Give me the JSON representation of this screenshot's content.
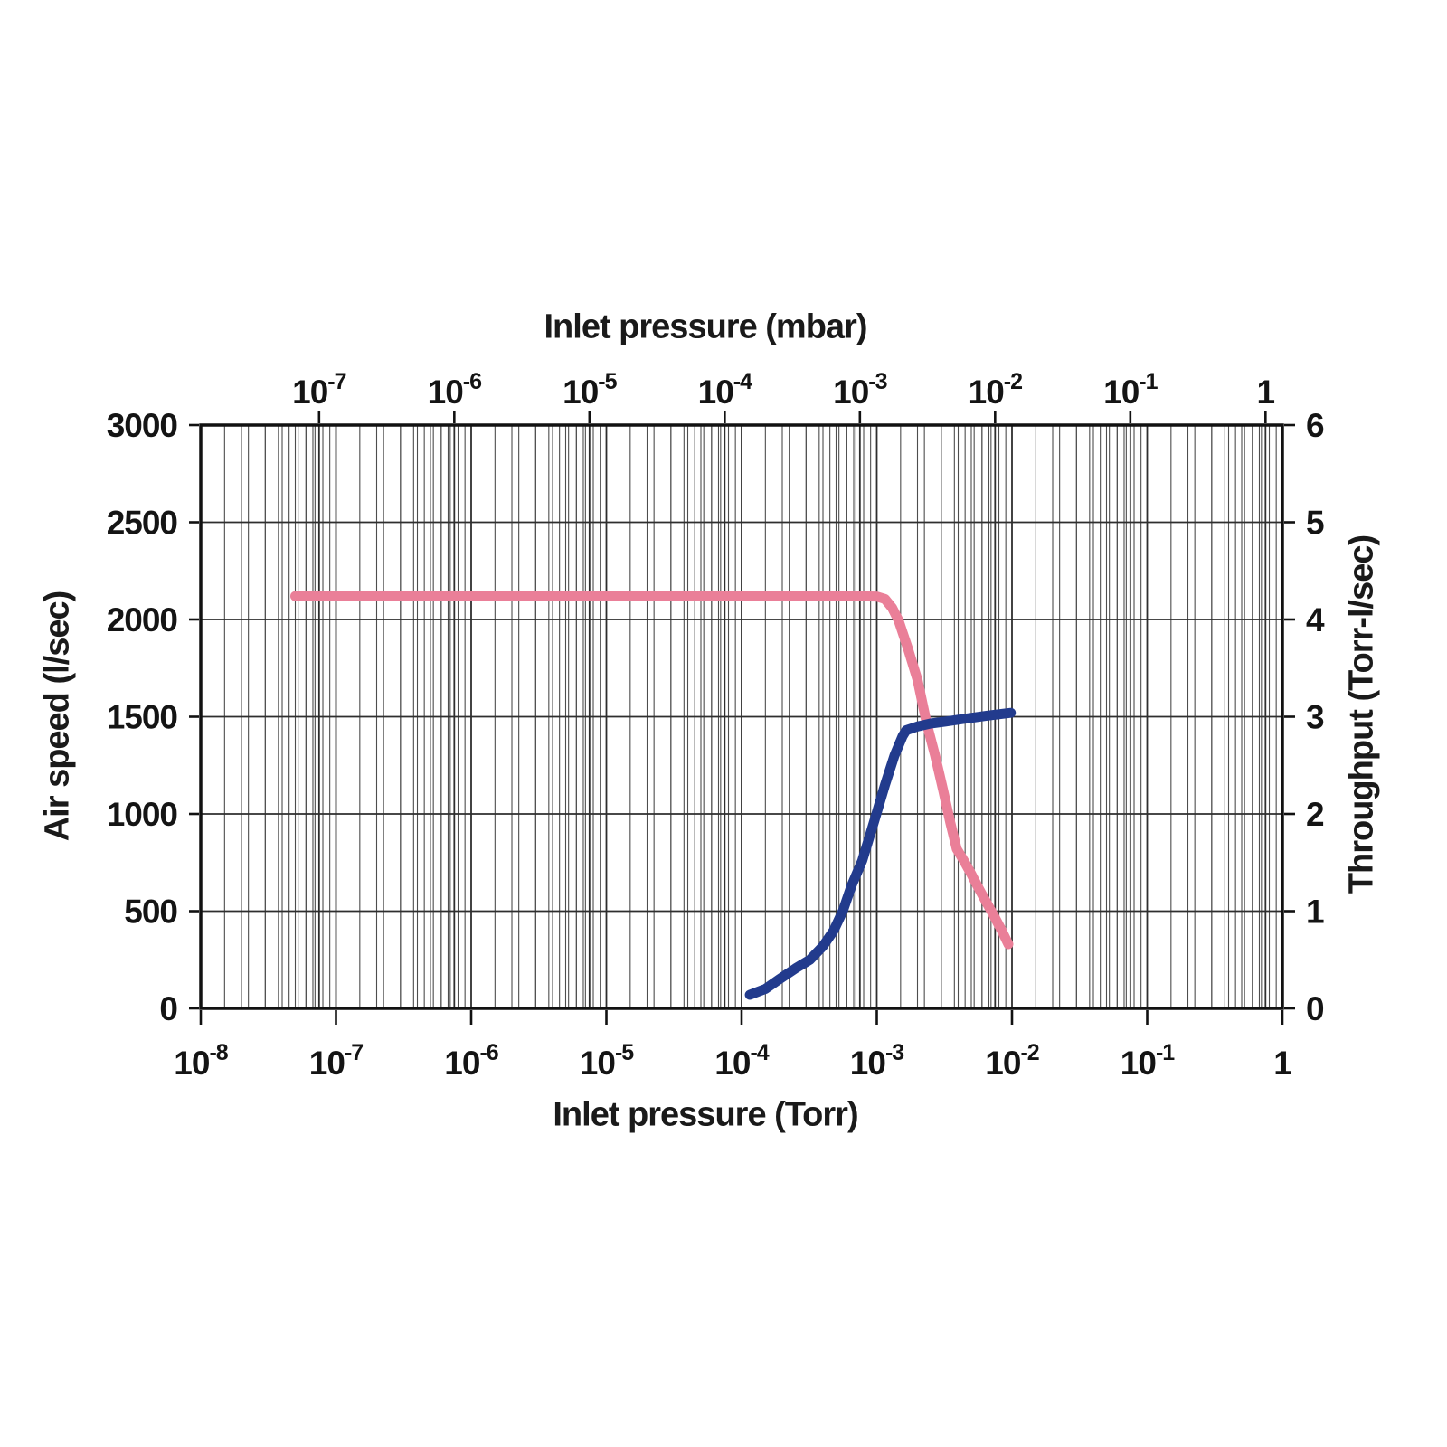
{
  "chart_data": {
    "type": "line",
    "title": "",
    "x_axis_bottom": {
      "label": "Inlet pressure (Torr)",
      "scale": "log",
      "min": 1e-08,
      "max": 1,
      "tick_exponents": [
        -8,
        -7,
        -6,
        -5,
        -4,
        -3,
        -2,
        -1,
        0
      ]
    },
    "x_axis_top": {
      "label": "Inlet pressure (mbar)",
      "scale": "log",
      "factor_from_torr": 1.3332,
      "tick_exponents": [
        -7,
        -6,
        -5,
        -4,
        -3,
        -2,
        -1,
        0
      ]
    },
    "y_axis_left": {
      "label": "Air speed (l/sec)",
      "min": 0,
      "max": 3000,
      "ticks": [
        0,
        500,
        1000,
        1500,
        2000,
        2500,
        3000
      ]
    },
    "y_axis_right": {
      "label": "Throughput (Torr-l/sec)",
      "min": 0,
      "max": 6,
      "ticks": [
        0,
        1,
        2,
        3,
        4,
        5,
        6
      ]
    },
    "grid": {
      "vertical": "log minor gridlines for both Torr and mbar scales",
      "horizontal": "major gridlines every 500 l/sec (every 1 Torr-l/sec)",
      "legend": "none"
    },
    "series": [
      {
        "name": "Air speed",
        "axis": "left",
        "color": "#ea7f98",
        "points": [
          [
            5e-08,
            2120
          ],
          [
            1e-05,
            2120
          ],
          [
            0.0006,
            2120
          ],
          [
            0.001,
            2118
          ],
          [
            0.00115,
            2105
          ],
          [
            0.0013,
            2060
          ],
          [
            0.00145,
            1995
          ],
          [
            0.0017,
            1850
          ],
          [
            0.002,
            1690
          ],
          [
            0.00235,
            1460
          ],
          [
            0.0027,
            1300
          ],
          [
            0.0031,
            1120
          ],
          [
            0.0035,
            955
          ],
          [
            0.0039,
            820
          ],
          [
            0.0044,
            760
          ],
          [
            0.005,
            690
          ],
          [
            0.0058,
            605
          ],
          [
            0.0066,
            535
          ],
          [
            0.0075,
            465
          ],
          [
            0.0084,
            400
          ],
          [
            0.0094,
            330
          ]
        ]
      },
      {
        "name": "Throughput",
        "axis": "right",
        "color": "#223b8d",
        "points": [
          [
            0.000115,
            0.14
          ],
          [
            0.00015,
            0.2
          ],
          [
            0.00019,
            0.3
          ],
          [
            0.00025,
            0.41
          ],
          [
            0.00032,
            0.5
          ],
          [
            0.0004,
            0.64
          ],
          [
            0.00048,
            0.8
          ],
          [
            0.00056,
            1.0
          ],
          [
            0.00065,
            1.26
          ],
          [
            0.00078,
            1.52
          ],
          [
            0.00096,
            1.93
          ],
          [
            0.00115,
            2.3
          ],
          [
            0.00135,
            2.6
          ],
          [
            0.00155,
            2.8
          ],
          [
            0.00165,
            2.86
          ],
          [
            0.002,
            2.9
          ],
          [
            0.0025,
            2.93
          ],
          [
            0.0032,
            2.95
          ],
          [
            0.0045,
            2.98
          ],
          [
            0.0065,
            3.01
          ],
          [
            0.0098,
            3.04
          ]
        ]
      }
    ],
    "colors": {
      "air_speed_line": "#ea7f98",
      "throughput_line": "#223b8d",
      "grid_minor": "#4d4d4d",
      "grid_major": "#2e2e2e",
      "border": "#111111",
      "text": "#141414",
      "background": "#ffffff"
    }
  }
}
